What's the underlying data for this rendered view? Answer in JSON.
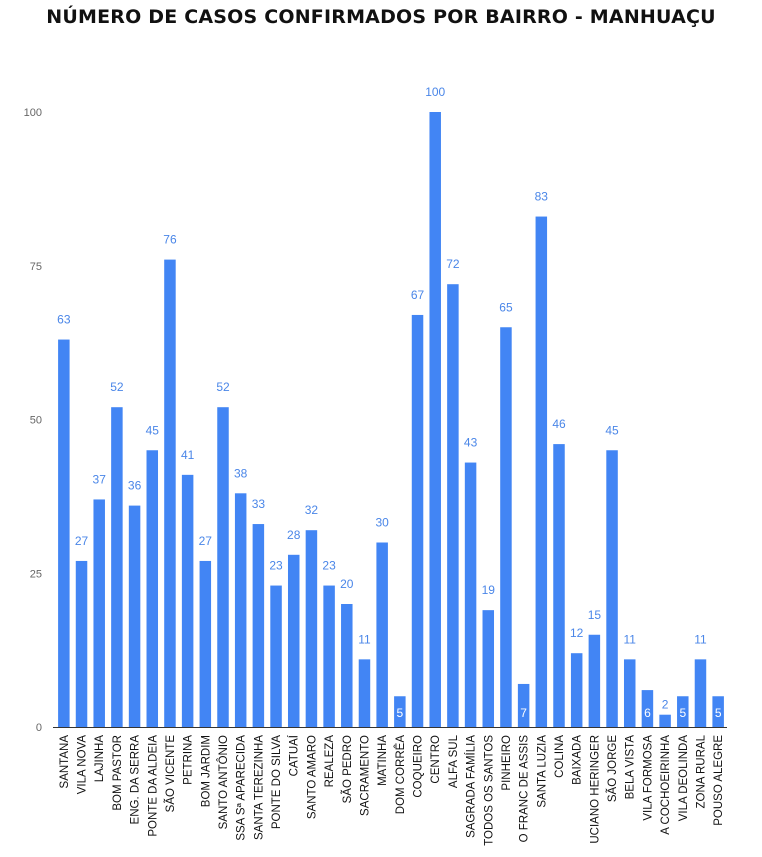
{
  "chart_data": {
    "type": "bar",
    "title": "NÚMERO DE  CASOS CONFIRMADOS POR BAIRRO - MANHUAÇU",
    "xlabel": "",
    "ylabel": "",
    "ylim": [
      0,
      100
    ],
    "yticks": [
      0,
      25,
      50,
      75,
      100
    ],
    "grid": false,
    "legend": "none",
    "colors": {
      "bar": "#4285f4",
      "label_above": "#4a86e8",
      "label_inside": "#ffffff"
    },
    "categories": [
      "SANTANA",
      "VILA NOVA",
      "LAJINHA",
      "BOM PASTOR",
      "ENG. DA SERRA",
      "PONTE DA ALDEIA",
      "SÃO VICENTE",
      "PETRINA",
      "BOM JARDIM",
      "SANTO ANTÔNIO",
      "SSA Sª APARECIDA",
      "SANTA TEREZINHA",
      "PONTE DO SILVA",
      "CATUAÍ",
      "SANTO AMARO",
      "REALEZA",
      "SÃO PEDRO",
      "SACRAMENTO",
      "MATINHA",
      "DOM CORRÊA",
      "COQUEIRO",
      "CENTRO",
      "ALFA SUL",
      "SAGRADA FAMÍLIA",
      "TODOS OS SANTOS",
      "PINHEIRO",
      "O FRANC DE ASSIS",
      "SANTA LUZIA",
      "COLINA",
      "BAIXADA",
      "UCIANO HERINGER",
      "SÃO JORGE",
      "BELA VISTA",
      "VILA FORMOSA",
      "A COCHOEIRINHA",
      "VILA DEOLINDA",
      "ZONA RURAL",
      "POUSO ALEGRE"
    ],
    "values": [
      63,
      27,
      37,
      52,
      36,
      45,
      76,
      41,
      27,
      52,
      38,
      33,
      23,
      28,
      32,
      23,
      20,
      11,
      30,
      5,
      67,
      100,
      72,
      43,
      19,
      65,
      7,
      83,
      46,
      12,
      15,
      45,
      11,
      6,
      2,
      5,
      11,
      5
    ]
  }
}
